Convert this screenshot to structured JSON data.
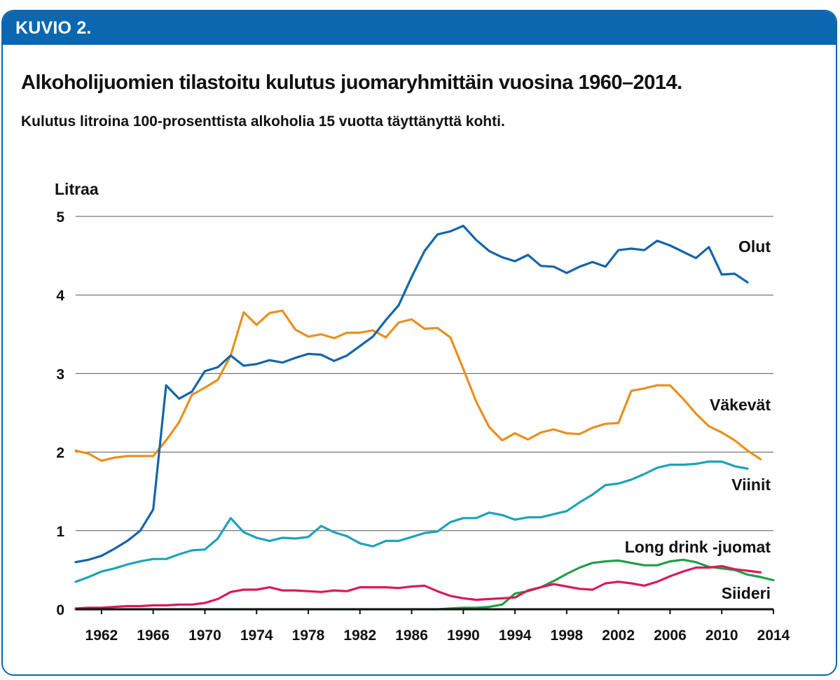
{
  "figure": {
    "label": "KUVIO 2.",
    "title": "Alkoholijuomien tilastoitu kulutus juomaryhmittäin vuosina 1960–2014.",
    "subtitle": "Kulutus litroina 100-prosenttista alkoholia 15 vuotta täyttänyttä kohti."
  },
  "colors": {
    "frame": "#0a67b0",
    "header_bar": "#0a67b0",
    "grid": "#555555",
    "axis": "#111111"
  },
  "chart_data": {
    "type": "line",
    "title": "Alkoholijuomien tilastoitu kulutus juomaryhmittäin vuosina 1960–2014.",
    "ylabel": "Litraa",
    "xlabel": "",
    "xlim": [
      1960,
      2014
    ],
    "ylim": [
      0,
      5
    ],
    "yticks": [
      "0",
      "1",
      "2",
      "3",
      "4",
      "5"
    ],
    "xticks": [
      "1962",
      "1966",
      "1970",
      "1974",
      "1978",
      "1982",
      "1986",
      "1990",
      "1994",
      "1998",
      "2002",
      "2006",
      "2010",
      "2014"
    ],
    "grid": "horizontal",
    "legend": "labels at line ends",
    "x": [
      1960,
      1961,
      1962,
      1963,
      1964,
      1965,
      1966,
      1967,
      1968,
      1969,
      1970,
      1971,
      1972,
      1973,
      1974,
      1975,
      1976,
      1977,
      1978,
      1979,
      1980,
      1981,
      1982,
      1983,
      1984,
      1985,
      1986,
      1987,
      1988,
      1989,
      1990,
      1991,
      1992,
      1993,
      1994,
      1995,
      1996,
      1997,
      1998,
      1999,
      2000,
      2001,
      2002,
      2003,
      2004,
      2005,
      2006,
      2007,
      2008,
      2009,
      2010,
      2011,
      2012,
      2013,
      2014
    ],
    "series": [
      {
        "name": "Olut",
        "color": "#1565a8",
        "values": [
          0.6,
          0.63,
          0.68,
          0.77,
          0.87,
          1.0,
          1.27,
          2.85,
          2.68,
          2.77,
          3.03,
          3.08,
          3.23,
          3.1,
          3.12,
          3.17,
          3.14,
          3.2,
          3.25,
          3.24,
          3.16,
          3.23,
          3.35,
          3.47,
          3.68,
          3.87,
          4.23,
          4.56,
          4.77,
          4.81,
          4.88,
          4.7,
          4.56,
          4.48,
          4.43,
          4.51,
          4.37,
          4.36,
          4.28,
          4.36,
          4.42,
          4.36,
          4.57,
          4.59,
          4.57,
          4.69,
          4.63,
          4.55,
          4.47,
          4.61,
          4.26,
          4.27,
          4.16,
          null,
          null
        ]
      },
      {
        "name": "Väkevät",
        "color": "#e8901e",
        "values": [
          2.02,
          1.98,
          1.89,
          1.93,
          1.95,
          1.95,
          1.95,
          2.15,
          2.38,
          2.73,
          2.82,
          2.92,
          3.23,
          3.78,
          3.62,
          3.77,
          3.8,
          3.56,
          3.47,
          3.5,
          3.45,
          3.52,
          3.52,
          3.55,
          3.46,
          3.65,
          3.69,
          3.57,
          3.58,
          3.46,
          3.06,
          2.64,
          2.32,
          2.15,
          2.24,
          2.16,
          2.25,
          2.29,
          2.24,
          2.23,
          2.31,
          2.36,
          2.37,
          2.78,
          2.81,
          2.85,
          2.85,
          2.68,
          2.49,
          2.33,
          2.25,
          2.15,
          2.02,
          1.91,
          null
        ]
      },
      {
        "name": "Viinit",
        "color": "#1da3b8",
        "values": [
          0.35,
          0.41,
          0.48,
          0.52,
          0.57,
          0.61,
          0.64,
          0.64,
          0.7,
          0.75,
          0.76,
          0.9,
          1.16,
          0.98,
          0.91,
          0.87,
          0.91,
          0.9,
          0.92,
          1.06,
          0.98,
          0.93,
          0.84,
          0.8,
          0.87,
          0.87,
          0.92,
          0.97,
          0.99,
          1.11,
          1.16,
          1.16,
          1.23,
          1.2,
          1.14,
          1.17,
          1.17,
          1.21,
          1.25,
          1.36,
          1.46,
          1.58,
          1.6,
          1.65,
          1.72,
          1.8,
          1.84,
          1.84,
          1.85,
          1.88,
          1.88,
          1.82,
          1.79,
          null,
          null
        ]
      },
      {
        "name": "Long drink -juomat",
        "color": "#1f9e4a",
        "values": [
          0,
          0,
          0,
          0,
          0,
          0,
          0,
          0,
          0,
          0,
          0,
          0,
          0,
          0,
          0,
          0,
          0,
          0,
          0,
          0,
          0,
          0,
          0,
          0,
          0,
          0,
          0,
          0,
          0,
          0.01,
          0.02,
          0.02,
          0.03,
          0.06,
          0.2,
          0.23,
          0.28,
          0.36,
          0.45,
          0.53,
          0.59,
          0.61,
          0.62,
          0.59,
          0.56,
          0.56,
          0.61,
          0.63,
          0.6,
          0.54,
          0.52,
          0.5,
          0.44,
          0.41,
          0.37
        ]
      },
      {
        "name": "Siideri",
        "color": "#d81b5a",
        "values": [
          0.01,
          0.02,
          0.02,
          0.03,
          0.04,
          0.04,
          0.05,
          0.05,
          0.06,
          0.06,
          0.08,
          0.13,
          0.22,
          0.25,
          0.25,
          0.28,
          0.24,
          0.24,
          0.23,
          0.22,
          0.24,
          0.23,
          0.28,
          0.28,
          0.28,
          0.27,
          0.29,
          0.3,
          0.23,
          0.17,
          0.14,
          0.12,
          0.13,
          0.14,
          0.15,
          0.24,
          0.28,
          0.32,
          0.29,
          0.26,
          0.25,
          0.33,
          0.35,
          0.33,
          0.3,
          0.35,
          0.42,
          0.48,
          0.53,
          0.53,
          0.55,
          0.51,
          0.49,
          0.47,
          null
        ]
      }
    ]
  }
}
